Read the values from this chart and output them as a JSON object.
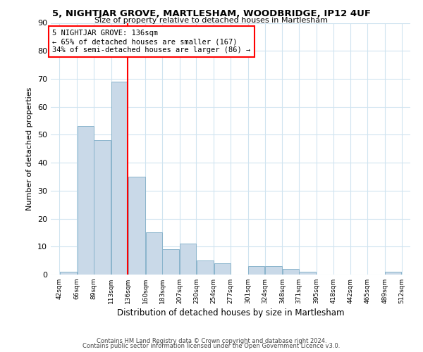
{
  "title": "5, NIGHTJAR GROVE, MARTLESHAM, WOODBRIDGE, IP12 4UF",
  "subtitle": "Size of property relative to detached houses in Martlesham",
  "xlabel": "Distribution of detached houses by size in Martlesham",
  "ylabel": "Number of detached properties",
  "bar_color": "#c9d9e8",
  "bar_edge_color": "#8ab4cc",
  "background_color": "#ffffff",
  "grid_color": "#d0e4f0",
  "vline_x": 136,
  "vline_color": "red",
  "annotation_line1": "5 NIGHTJAR GROVE: 136sqm",
  "annotation_line2": "← 65% of detached houses are smaller (167)",
  "annotation_line3": "34% of semi-detached houses are larger (86) →",
  "footer_line1": "Contains HM Land Registry data © Crown copyright and database right 2024.",
  "footer_line2": "Contains public sector information licensed under the Open Government Licence v3.0.",
  "ylim": [
    0,
    90
  ],
  "yticks": [
    0,
    10,
    20,
    30,
    40,
    50,
    60,
    70,
    80,
    90
  ],
  "bins": [
    42,
    66,
    89,
    113,
    136,
    160,
    183,
    207,
    230,
    254,
    277,
    301,
    324,
    348,
    371,
    395,
    418,
    442,
    465,
    489,
    512
  ],
  "counts": [
    1,
    53,
    48,
    69,
    35,
    15,
    9,
    11,
    5,
    4,
    0,
    3,
    3,
    2,
    1,
    0,
    0,
    0,
    0,
    1
  ],
  "tick_labels": [
    "42sqm",
    "66sqm",
    "89sqm",
    "113sqm",
    "136sqm",
    "160sqm",
    "183sqm",
    "207sqm",
    "230sqm",
    "254sqm",
    "277sqm",
    "301sqm",
    "324sqm",
    "348sqm",
    "371sqm",
    "395sqm",
    "418sqm",
    "442sqm",
    "465sqm",
    "489sqm",
    "512sqm"
  ]
}
